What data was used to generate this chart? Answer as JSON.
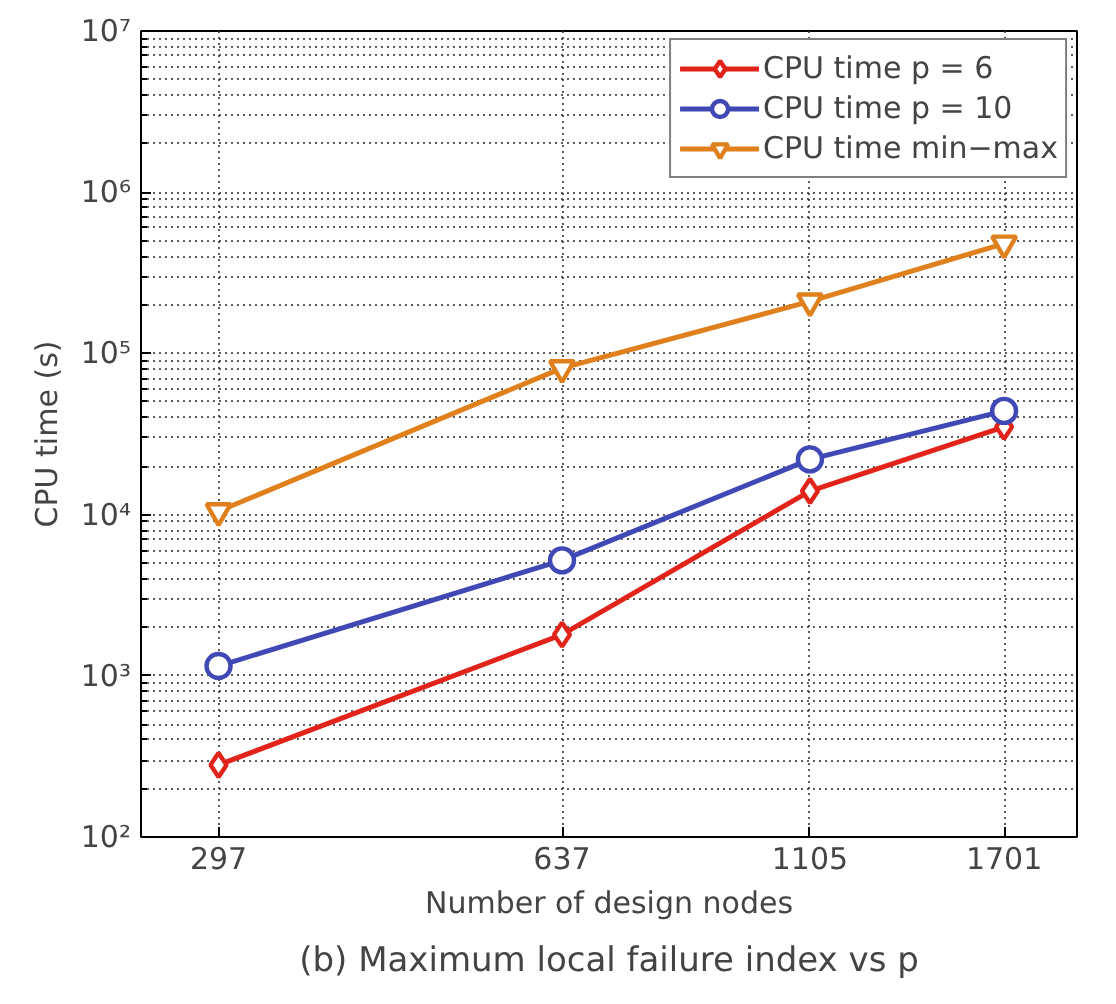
{
  "chart_data": {
    "type": "line",
    "title": "(b) Maximum local failure index vs p",
    "xlabel": "Number of design nodes",
    "ylabel": "CPU time (s)",
    "x": [
      297,
      637,
      1105,
      1701
    ],
    "log": "xy",
    "xlim": [
      250,
      2000
    ],
    "xticks": [
      297,
      637,
      1105,
      1701
    ],
    "ylim": [
      100,
      10000000
    ],
    "yticks": [
      {
        "value": 100,
        "label": "10²"
      },
      {
        "value": 1000,
        "label": "10³"
      },
      {
        "value": 10000,
        "label": "10⁴"
      },
      {
        "value": 100000,
        "label": "10⁵"
      },
      {
        "value": 1000000,
        "label": "10⁶"
      },
      {
        "value": 10000000,
        "label": "10⁷"
      }
    ],
    "grid": true,
    "legend": "top right",
    "line_style": "solid",
    "series": [
      {
        "name": "CPU time p = 6",
        "color": "#e2231a",
        "marker": "diamond",
        "values": [
          280,
          1800,
          14000,
          35000
        ]
      },
      {
        "name": "CPU time p = 10",
        "color": "#3f48b5",
        "marker": "circle",
        "values": [
          1150,
          5200,
          22000,
          44000
        ]
      },
      {
        "name": "CPU time min−max",
        "color": "#e0801c",
        "marker": "triangle",
        "values": [
          10500,
          81000,
          210000,
          480000
        ]
      }
    ]
  }
}
